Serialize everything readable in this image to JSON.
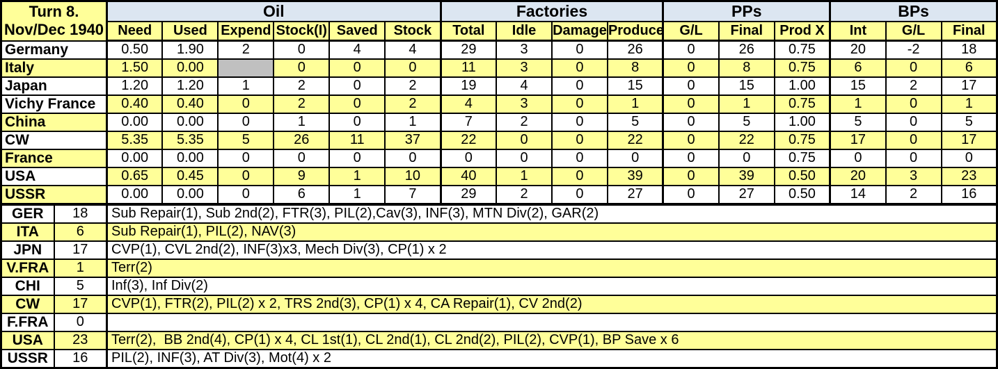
{
  "header": {
    "turn": "Turn 8.",
    "date": "Nov/Dec 1940"
  },
  "sections": [
    {
      "label": "Oil",
      "span": 6
    },
    {
      "label": "Factories",
      "span": 4
    },
    {
      "label": "PPs",
      "span": 3
    },
    {
      "label": "BPs",
      "span": 3
    }
  ],
  "columns": [
    "Need",
    "Used",
    "Expend",
    "Stock(I)",
    "Saved",
    "Stock",
    "Total",
    "Idle",
    "Damage",
    "Produce",
    "G/L",
    "Final",
    "Prod X",
    "Int",
    "G/L",
    "Final"
  ],
  "colors": {
    "cell_yellow": "#FFFF99",
    "section_header_blue": "#DCE6F1",
    "disabled_gray": "#C0C0C0",
    "grid_black": "#000000"
  },
  "production_table": {
    "rows": [
      {
        "name": "Germany",
        "name_bg": "white",
        "data_bg": "white",
        "gray_cells": [],
        "cells": [
          "0.50",
          "1.90",
          "2",
          "0",
          "4",
          "4",
          "29",
          "3",
          "0",
          "26",
          "0",
          "26",
          "0.75",
          "20",
          "-2",
          "18"
        ]
      },
      {
        "name": "Italy",
        "name_bg": "yellow",
        "data_bg": "yellow",
        "gray_cells": [
          2
        ],
        "cells": [
          "1.50",
          "0.00",
          "",
          "0",
          "0",
          "0",
          "11",
          "3",
          "0",
          "8",
          "0",
          "8",
          "0.75",
          "6",
          "0",
          "6"
        ]
      },
      {
        "name": "Japan",
        "name_bg": "white",
        "data_bg": "white",
        "gray_cells": [],
        "cells": [
          "1.20",
          "1.20",
          "1",
          "2",
          "0",
          "2",
          "19",
          "4",
          "0",
          "15",
          "0",
          "15",
          "1.00",
          "15",
          "2",
          "17"
        ]
      },
      {
        "name": "Vichy France",
        "name_bg": "white",
        "data_bg": "yellow",
        "gray_cells": [],
        "cells": [
          "0.40",
          "0.40",
          "0",
          "2",
          "0",
          "2",
          "4",
          "3",
          "0",
          "1",
          "0",
          "1",
          "0.75",
          "1",
          "0",
          "1"
        ]
      },
      {
        "name": "China",
        "name_bg": "yellow",
        "data_bg": "white",
        "gray_cells": [],
        "cells": [
          "0.00",
          "0.00",
          "0",
          "1",
          "0",
          "1",
          "7",
          "2",
          "0",
          "5",
          "0",
          "5",
          "1.00",
          "5",
          "0",
          "5"
        ]
      },
      {
        "name": "CW",
        "name_bg": "white",
        "data_bg": "yellow",
        "gray_cells": [],
        "cells": [
          "5.35",
          "5.35",
          "5",
          "26",
          "11",
          "37",
          "22",
          "0",
          "0",
          "22",
          "0",
          "22",
          "0.75",
          "17",
          "0",
          "17"
        ]
      },
      {
        "name": "France",
        "name_bg": "yellow",
        "data_bg": "white",
        "gray_cells": [],
        "cells": [
          "0.00",
          "0.00",
          "0",
          "0",
          "0",
          "0",
          "0",
          "0",
          "0",
          "0",
          "0",
          "0",
          "0.75",
          "0",
          "0",
          "0"
        ]
      },
      {
        "name": "USA",
        "name_bg": "white",
        "data_bg": "yellow",
        "gray_cells": [],
        "cells": [
          "0.65",
          "0.45",
          "0",
          "9",
          "1",
          "10",
          "40",
          "1",
          "0",
          "39",
          "0",
          "39",
          "0.50",
          "20",
          "3",
          "23"
        ]
      },
      {
        "name": "USSR",
        "name_bg": "yellow",
        "data_bg": "white",
        "gray_cells": [],
        "cells": [
          "0.00",
          "0.00",
          "0",
          "6",
          "1",
          "7",
          "29",
          "2",
          "0",
          "27",
          "0",
          "27",
          "0.50",
          "14",
          "2",
          "16"
        ]
      }
    ]
  },
  "builds_table": {
    "rows": [
      {
        "abbr": "GER",
        "points": "18",
        "bg": "white",
        "builds": "Sub Repair(1), Sub 2nd(2), FTR(3), PIL(2),Cav(3), INF(3), MTN Div(2), GAR(2)"
      },
      {
        "abbr": "ITA",
        "points": "6",
        "bg": "yellow",
        "builds": "Sub Repair(1), PIL(2), NAV(3)"
      },
      {
        "abbr": "JPN",
        "points": "17",
        "bg": "white",
        "builds": "CVP(1), CVL 2nd(2), INF(3)x3, Mech Div(3), CP(1) x 2"
      },
      {
        "abbr": "V.FRA",
        "points": "1",
        "bg": "yellow",
        "builds": "Terr(2)"
      },
      {
        "abbr": "CHI",
        "points": "5",
        "bg": "white",
        "builds": "Inf(3), Inf Div(2)"
      },
      {
        "abbr": "CW",
        "points": "17",
        "bg": "yellow",
        "builds": "CVP(1), FTR(2), PIL(2) x 2, TRS 2nd(3), CP(1) x 4, CA Repair(1), CV 2nd(2)"
      },
      {
        "abbr": "F.FRA",
        "points": "0",
        "bg": "white",
        "builds": ""
      },
      {
        "abbr": "USA",
        "points": "23",
        "bg": "yellow",
        "builds": "Terr(2),  BB 2nd(4), CP(1) x 4, CL 1st(1), CL 2nd(1), CL 2nd(2), PIL(2), CVP(1), BP Save x 6"
      },
      {
        "abbr": "USSR",
        "points": "16",
        "bg": "white",
        "builds": "PIL(2), INF(3), AT Div(3), Mot(4) x 2"
      }
    ]
  }
}
